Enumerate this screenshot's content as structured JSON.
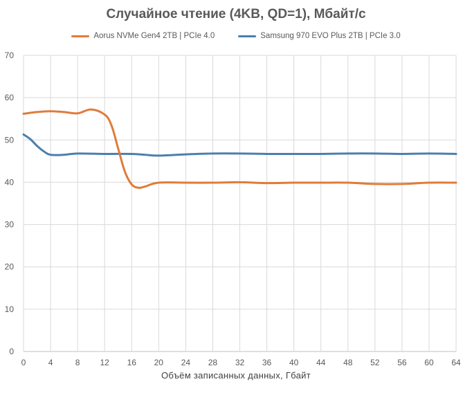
{
  "chart_data": {
    "type": "line",
    "title": "Случайное чтение (4KB, QD=1), Мбайт/с",
    "xlabel": "Объём записанных данных, Гбайт",
    "ylabel": "",
    "xlim": [
      0,
      64
    ],
    "ylim": [
      0,
      70
    ],
    "x_ticks": [
      "0",
      "4",
      "8",
      "12",
      "16",
      "20",
      "24",
      "28",
      "32",
      "36",
      "40",
      "44",
      "48",
      "52",
      "56",
      "60",
      "64"
    ],
    "y_ticks": [
      "0",
      "10",
      "20",
      "30",
      "40",
      "50",
      "60",
      "70"
    ],
    "grid": true,
    "legend_position": "top",
    "series": [
      {
        "name": "Aorus NVMe Gen4 2TB | PCIe 4.0",
        "color": "#e07b39",
        "x": [
          0,
          2,
          4,
          6,
          8,
          10,
          12,
          13,
          14,
          15,
          16,
          17,
          18,
          20,
          24,
          28,
          32,
          36,
          40,
          44,
          48,
          52,
          56,
          60,
          64
        ],
        "values": [
          56.2,
          56.6,
          56.8,
          56.6,
          56.3,
          57.2,
          56.0,
          53.5,
          48.0,
          42.5,
          39.5,
          38.7,
          39.0,
          39.9,
          39.9,
          39.9,
          40.0,
          39.8,
          39.9,
          39.9,
          39.9,
          39.6,
          39.6,
          39.9,
          39.9
        ]
      },
      {
        "name": "Samsung 970 EVO Plus 2TB | PCIe 3.0",
        "color": "#4a7fad",
        "x": [
          0,
          1,
          2,
          3,
          4,
          6,
          8,
          12,
          16,
          18,
          20,
          24,
          28,
          32,
          36,
          40,
          44,
          48,
          52,
          56,
          60,
          64
        ],
        "values": [
          51.3,
          50.2,
          48.6,
          47.3,
          46.5,
          46.5,
          46.8,
          46.7,
          46.7,
          46.5,
          46.3,
          46.6,
          46.8,
          46.8,
          46.7,
          46.7,
          46.7,
          46.8,
          46.8,
          46.7,
          46.8,
          46.7
        ]
      }
    ]
  }
}
